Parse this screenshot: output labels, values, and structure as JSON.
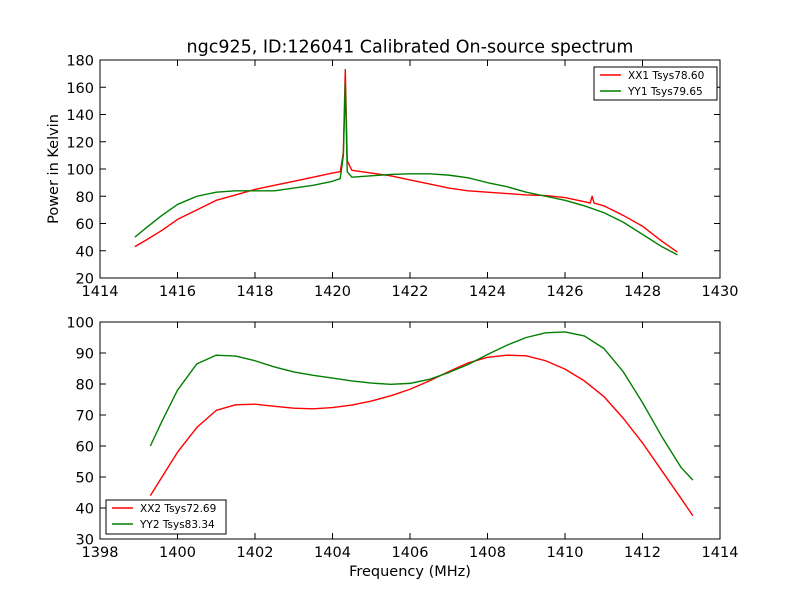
{
  "figure": {
    "title": "ngc925, ID:126041 Calibrated On-source spectrum"
  },
  "chart_data": [
    {
      "type": "line",
      "title": "ngc925, ID:126041 Calibrated On-source spectrum",
      "xlabel": "",
      "ylabel": "Power in Kelvin",
      "xlim": [
        1414,
        1430
      ],
      "ylim": [
        20,
        180
      ],
      "xticks": [
        1414,
        1416,
        1418,
        1420,
        1422,
        1424,
        1426,
        1428,
        1430
      ],
      "yticks": [
        20,
        40,
        60,
        80,
        100,
        120,
        140,
        160,
        180
      ],
      "grid": false,
      "legend_position": "top-right",
      "series": [
        {
          "name": "XX1 Tsys78.60",
          "color": "#ff0000",
          "x": [
            1414.9,
            1415.2,
            1415.6,
            1416.0,
            1416.5,
            1417.0,
            1417.5,
            1418.0,
            1418.5,
            1419.0,
            1419.5,
            1420.0,
            1420.2,
            1420.28,
            1420.33,
            1420.38,
            1420.5,
            1421.0,
            1421.5,
            1422.0,
            1422.5,
            1423.0,
            1423.5,
            1424.0,
            1424.5,
            1425.0,
            1425.5,
            1426.0,
            1426.5,
            1426.65,
            1426.7,
            1426.75,
            1427.0,
            1427.5,
            1428.0,
            1428.5,
            1428.9
          ],
          "y": [
            43,
            48,
            55,
            63,
            70,
            77,
            81,
            85,
            88,
            91,
            94,
            97,
            98,
            112,
            173,
            106,
            99,
            97,
            95,
            92,
            89,
            86,
            84,
            83,
            82,
            81,
            80.5,
            79,
            76,
            75,
            80,
            75,
            73,
            66,
            58,
            47,
            39
          ]
        },
        {
          "name": "YY1 Tsys79.65",
          "color": "#007f00",
          "x": [
            1414.9,
            1415.2,
            1415.6,
            1416.0,
            1416.5,
            1417.0,
            1417.5,
            1418.0,
            1418.5,
            1419.0,
            1419.5,
            1420.0,
            1420.2,
            1420.28,
            1420.33,
            1420.38,
            1420.5,
            1421.0,
            1421.5,
            1422.0,
            1422.5,
            1423.0,
            1423.5,
            1424.0,
            1424.5,
            1425.0,
            1425.5,
            1426.0,
            1426.5,
            1427.0,
            1427.5,
            1428.0,
            1428.5,
            1428.9
          ],
          "y": [
            50,
            57,
            66,
            74,
            80,
            83,
            84,
            84,
            84,
            86,
            88,
            91,
            93,
            110,
            163,
            98,
            94,
            95,
            96,
            96.5,
            96.5,
            95.5,
            93.5,
            90,
            87,
            83,
            80,
            77,
            73,
            68,
            61,
            52,
            43,
            37
          ]
        }
      ]
    },
    {
      "type": "line",
      "title": "",
      "xlabel": "Frequency (MHz)",
      "ylabel": "",
      "xlim": [
        1398,
        1414
      ],
      "ylim": [
        30,
        100
      ],
      "xticks": [
        1398,
        1400,
        1402,
        1404,
        1406,
        1408,
        1410,
        1412,
        1414
      ],
      "yticks": [
        30,
        40,
        50,
        60,
        70,
        80,
        90,
        100
      ],
      "grid": false,
      "legend_position": "bottom-left",
      "series": [
        {
          "name": "XX2 Tsys72.69",
          "color": "#ff0000",
          "x": [
            1399.3,
            1399.6,
            1400.0,
            1400.5,
            1401.0,
            1401.5,
            1402.0,
            1402.5,
            1403.0,
            1403.5,
            1404.0,
            1404.5,
            1405.0,
            1405.5,
            1406.0,
            1406.5,
            1407.0,
            1407.5,
            1408.0,
            1408.5,
            1409.0,
            1409.5,
            1410.0,
            1410.5,
            1411.0,
            1411.5,
            1412.0,
            1412.5,
            1413.0,
            1413.3
          ],
          "y": [
            44,
            50,
            58,
            66,
            71.5,
            73.3,
            73.5,
            72.8,
            72.2,
            72,
            72.4,
            73.2,
            74.5,
            76.2,
            78.3,
            81,
            84,
            86.8,
            88.6,
            89.3,
            89.1,
            87.5,
            84.8,
            81,
            76,
            69,
            61,
            52,
            43,
            37.5
          ]
        },
        {
          "name": "YY2 Tsys83.34",
          "color": "#007f00",
          "x": [
            1399.3,
            1399.6,
            1400.0,
            1400.5,
            1401.0,
            1401.5,
            1402.0,
            1402.5,
            1403.0,
            1403.5,
            1404.0,
            1404.5,
            1405.0,
            1405.5,
            1406.0,
            1406.5,
            1407.0,
            1407.5,
            1408.0,
            1408.5,
            1409.0,
            1409.5,
            1410.0,
            1410.5,
            1411.0,
            1411.5,
            1412.0,
            1412.5,
            1413.0,
            1413.3
          ],
          "y": [
            60,
            68,
            78,
            86.5,
            89.3,
            89,
            87.5,
            85.5,
            83.9,
            82.8,
            81.9,
            81,
            80.3,
            79.9,
            80.2,
            81.5,
            83.7,
            86.3,
            89.5,
            92.5,
            95,
            96.5,
            96.8,
            95.5,
            91.5,
            84,
            74,
            63,
            53,
            49
          ]
        }
      ]
    }
  ]
}
